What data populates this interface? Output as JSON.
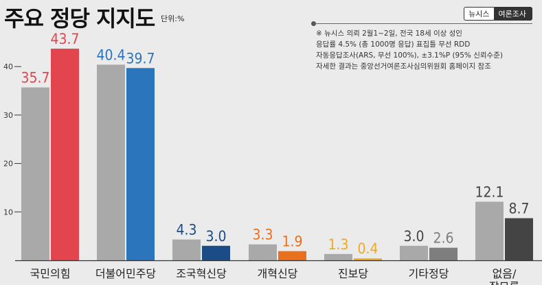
{
  "header": {
    "title": "주요 정당 지지도",
    "unit": "단위:%",
    "source_left": "뉴시스",
    "source_right": "여론조사"
  },
  "notes": [
    "※ 뉴시스 의뢰 2월1~2일, 전국 18세 이상 성인",
    "응답률 4.5% (총 1000명 응답) 표집틀 무선 RDD",
    "자동응답조사(ARS, 무선 100%), ±3.1%P (95% 신뢰수준)",
    "자세한 결과는 중앙선거여론조사심의위원회 홈페이지 참조"
  ],
  "chart_data": {
    "type": "bar",
    "categories": [
      "국민의힘",
      "더불어민주당",
      "조국혁신당",
      "개혁신당",
      "진보당",
      "기타정당",
      "없음/잘모름"
    ],
    "series": [
      {
        "values": [
          35.7,
          40.4,
          4.3,
          3.3,
          1.3,
          3.0,
          12.1
        ]
      },
      {
        "values": [
          43.7,
          39.7,
          3.0,
          1.9,
          0.4,
          2.6,
          8.7
        ]
      }
    ],
    "series_colors": {
      "previous": "#a9a9a9",
      "current": [
        "#e3454f",
        "#2a75bb",
        "#1c4c86",
        "#e8701e",
        "#f0a81e",
        "#7e7e7e",
        "#444444"
      ],
      "label_previous": [
        "#e3454f",
        "#2a75bb",
        "#1c4c86",
        "#e8701e",
        "#f0a81e",
        "#444444",
        "#444444"
      ]
    },
    "yticks": [
      10,
      20,
      30,
      40
    ],
    "ylim": [
      0,
      45
    ],
    "xlabel": "",
    "ylabel": ""
  }
}
